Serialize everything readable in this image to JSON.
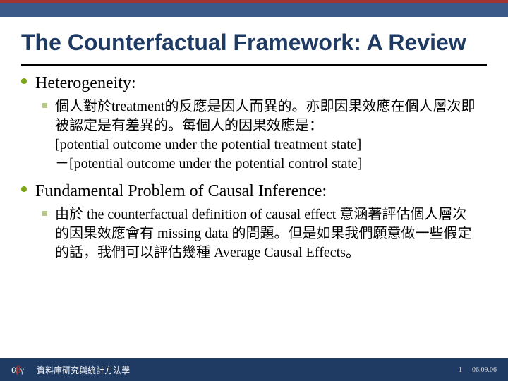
{
  "colors": {
    "accent_red": "#a43232",
    "band_blue": "#3b5a8a",
    "title_blue": "#1f3a63",
    "bullet_green": "#7aa516",
    "square_green": "#b7c98a",
    "footer_bg": "#1f3a63",
    "background": "#ffffff"
  },
  "typography": {
    "title_fontsize": 32,
    "lvl1_fontsize": 24,
    "lvl2_fontsize": 20,
    "footer_fontsize": 12
  },
  "title": "The Counterfactual Framework: A Review",
  "sections": [
    {
      "heading": "Heterogeneity:",
      "body_lines": [
        "個人對於treatment的反應是因人而異的。亦即因果效應在個人層次即被認定是有差異的。每個人的因果效應是：",
        "[potential outcome under the potential treatment state]",
        "－[potential outcome under the potential control state]"
      ]
    },
    {
      "heading": "Fundamental Problem of Causal Inference:",
      "body_lines": [
        "由於 the counterfactual definition of causal effect 意涵著評估個人層次的因果效應會有 missing data 的問題。但是如果我們願意做一些假定的話，我們可以評估幾種 Average Causal Effects。"
      ]
    }
  ],
  "footer": {
    "logo_alpha": "α",
    "logo_beta": "β",
    "logo_gamma": "γ",
    "text": "資料庫研究與統計方法學",
    "page": "1",
    "date": "06.09.06"
  }
}
